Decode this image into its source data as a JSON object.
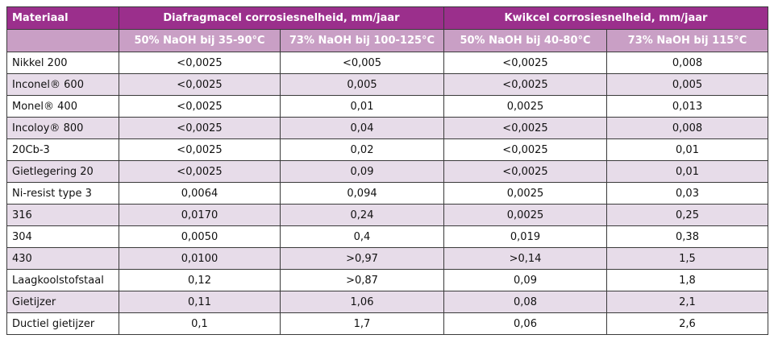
{
  "table": {
    "header": [
      "Materiaal",
      "Diafragmacel corrosiesnelheid, mm/jaar",
      "Kwikcel corrosiesnelheid, mm/jaar"
    ],
    "subheader": [
      "50% NaOH bij 35-90°C",
      "73% NaOH bij 100-125°C",
      "50% NaOH bij 40-80°C",
      "73% NaOH bij 115°C"
    ],
    "rows": [
      [
        "Nikkel 200",
        "<0,0025",
        "<0,005",
        "<0,0025",
        "0,008"
      ],
      [
        "Inconel® 600",
        "<0,0025",
        "0,005",
        "<0,0025",
        "0,005"
      ],
      [
        "Monel® 400",
        "<0,0025",
        "0,01",
        "0,0025",
        "0,013"
      ],
      [
        "Incoloy® 800",
        "<0,0025",
        "0,04",
        "<0,0025",
        "0,008"
      ],
      [
        "20Cb-3",
        "<0,0025",
        "0,02",
        "<0,0025",
        "0,01"
      ],
      [
        "Gietlegering 20",
        "<0,0025",
        "0,09",
        "<0,0025",
        "0,01"
      ],
      [
        "Ni-resist type 3",
        "0,0064",
        "0,094",
        "0,0025",
        "0,03"
      ],
      [
        "316",
        "0,0170",
        "0,24",
        "0,0025",
        "0,25"
      ],
      [
        "304",
        "0,0050",
        "0,4",
        "0,019",
        "0,38"
      ],
      [
        "430",
        "0,0100",
        ">0,97",
        ">0,14",
        "1,5"
      ],
      [
        "Laagkoolstofstaal",
        "0,12",
        ">0,87",
        "0,09",
        "1,8"
      ],
      [
        "Gietijzer",
        "0,11",
        "1,06",
        "0,08",
        "2,1"
      ],
      [
        "Ductiel gietijzer",
        "0,1",
        "1,7",
        "0,06",
        "2,6"
      ]
    ]
  }
}
